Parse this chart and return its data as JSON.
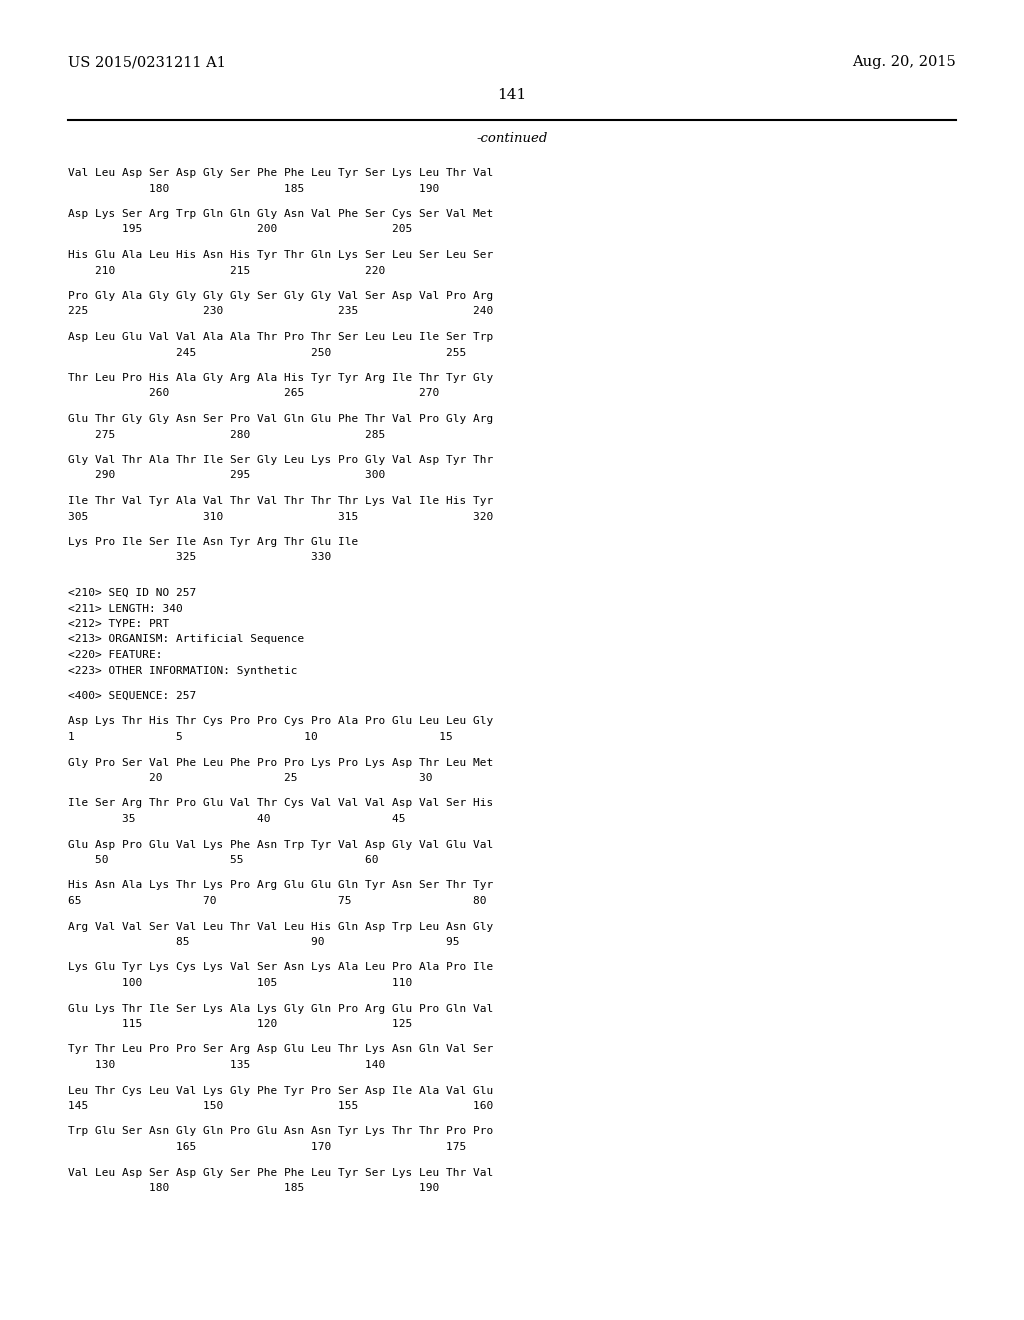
{
  "header_left": "US 2015/0231211 A1",
  "header_right": "Aug. 20, 2015",
  "page_number": "141",
  "continued_label": "-continued",
  "background_color": "#ffffff",
  "text_color": "#000000",
  "content_lines": [
    "Val Leu Asp Ser Asp Gly Ser Phe Phe Leu Tyr Ser Lys Leu Thr Val",
    "            180                 185                 190",
    "",
    "Asp Lys Ser Arg Trp Gln Gln Gly Asn Val Phe Ser Cys Ser Val Met",
    "        195                 200                 205",
    "",
    "His Glu Ala Leu His Asn His Tyr Thr Gln Lys Ser Leu Ser Leu Ser",
    "    210                 215                 220",
    "",
    "Pro Gly Ala Gly Gly Gly Gly Ser Gly Gly Val Ser Asp Val Pro Arg",
    "225                 230                 235                 240",
    "",
    "Asp Leu Glu Val Val Ala Ala Thr Pro Thr Ser Leu Leu Ile Ser Trp",
    "                245                 250                 255",
    "",
    "Thr Leu Pro His Ala Gly Arg Ala His Tyr Tyr Arg Ile Thr Tyr Gly",
    "            260                 265                 270",
    "",
    "Glu Thr Gly Gly Asn Ser Pro Val Gln Glu Phe Thr Val Pro Gly Arg",
    "    275                 280                 285",
    "",
    "Gly Val Thr Ala Thr Ile Ser Gly Leu Lys Pro Gly Val Asp Tyr Thr",
    "    290                 295                 300",
    "",
    "Ile Thr Val Tyr Ala Val Thr Val Thr Thr Thr Lys Val Ile His Tyr",
    "305                 310                 315                 320",
    "",
    "Lys Pro Ile Ser Ile Asn Tyr Arg Thr Glu Ile",
    "                325                 330",
    "",
    "",
    "<210> SEQ ID NO 257",
    "<211> LENGTH: 340",
    "<212> TYPE: PRT",
    "<213> ORGANISM: Artificial Sequence",
    "<220> FEATURE:",
    "<223> OTHER INFORMATION: Synthetic",
    "",
    "<400> SEQUENCE: 257",
    "",
    "Asp Lys Thr His Thr Cys Pro Pro Cys Pro Ala Pro Glu Leu Leu Gly",
    "1               5                  10                  15",
    "",
    "Gly Pro Ser Val Phe Leu Phe Pro Pro Lys Pro Lys Asp Thr Leu Met",
    "            20                  25                  30",
    "",
    "Ile Ser Arg Thr Pro Glu Val Thr Cys Val Val Val Asp Val Ser His",
    "        35                  40                  45",
    "",
    "Glu Asp Pro Glu Val Lys Phe Asn Trp Tyr Val Asp Gly Val Glu Val",
    "    50                  55                  60",
    "",
    "His Asn Ala Lys Thr Lys Pro Arg Glu Glu Gln Tyr Asn Ser Thr Tyr",
    "65                  70                  75                  80",
    "",
    "Arg Val Val Ser Val Leu Thr Val Leu His Gln Asp Trp Leu Asn Gly",
    "                85                  90                  95",
    "",
    "Lys Glu Tyr Lys Cys Lys Val Ser Asn Lys Ala Leu Pro Ala Pro Ile",
    "        100                 105                 110",
    "",
    "Glu Lys Thr Ile Ser Lys Ala Lys Gly Gln Pro Arg Glu Pro Gln Val",
    "        115                 120                 125",
    "",
    "Tyr Thr Leu Pro Pro Ser Arg Asp Glu Leu Thr Lys Asn Gln Val Ser",
    "    130                 135                 140",
    "",
    "Leu Thr Cys Leu Val Lys Gly Phe Tyr Pro Ser Asp Ile Ala Val Glu",
    "145                 150                 155                 160",
    "",
    "Trp Glu Ser Asn Gly Gln Pro Glu Asn Asn Tyr Lys Thr Thr Pro Pro",
    "                165                 170                 175",
    "",
    "Val Leu Asp Ser Asp Gly Ser Phe Phe Leu Tyr Ser Lys Leu Thr Val",
    "            180                 185                 190"
  ]
}
